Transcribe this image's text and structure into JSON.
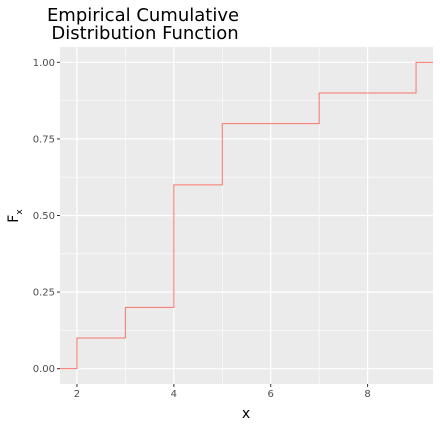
{
  "chart_data": {
    "type": "line",
    "step": true,
    "title_lines": [
      "Empirical Cumulative",
      "Distribution Function"
    ],
    "xlabel": "x",
    "ylabel_main": "F",
    "ylabel_sub": "x",
    "x_ticks": [
      2,
      4,
      6,
      8
    ],
    "x_tick_labels": [
      "2",
      "4",
      "6",
      "8"
    ],
    "y_ticks": [
      0,
      0.25,
      0.5,
      0.75,
      1
    ],
    "y_tick_labels": [
      "0.00",
      "0.25",
      "0.50",
      "0.75",
      "1.00"
    ],
    "xlim": [
      1.65,
      9.35
    ],
    "ylim": [
      -0.05,
      1.05
    ],
    "grid": true,
    "background": "#ebebeb",
    "grid_color": "#ffffff",
    "line_color": "#f8766d",
    "steps": [
      {
        "x": 1.65,
        "y": 0.0
      },
      {
        "x": 2,
        "y": 0.1
      },
      {
        "x": 3,
        "y": 0.2
      },
      {
        "x": 4,
        "y": 0.6
      },
      {
        "x": 5,
        "y": 0.8
      },
      {
        "x": 7,
        "y": 0.9
      },
      {
        "x": 9,
        "y": 1.0
      }
    ],
    "x_end": 9.35
  }
}
